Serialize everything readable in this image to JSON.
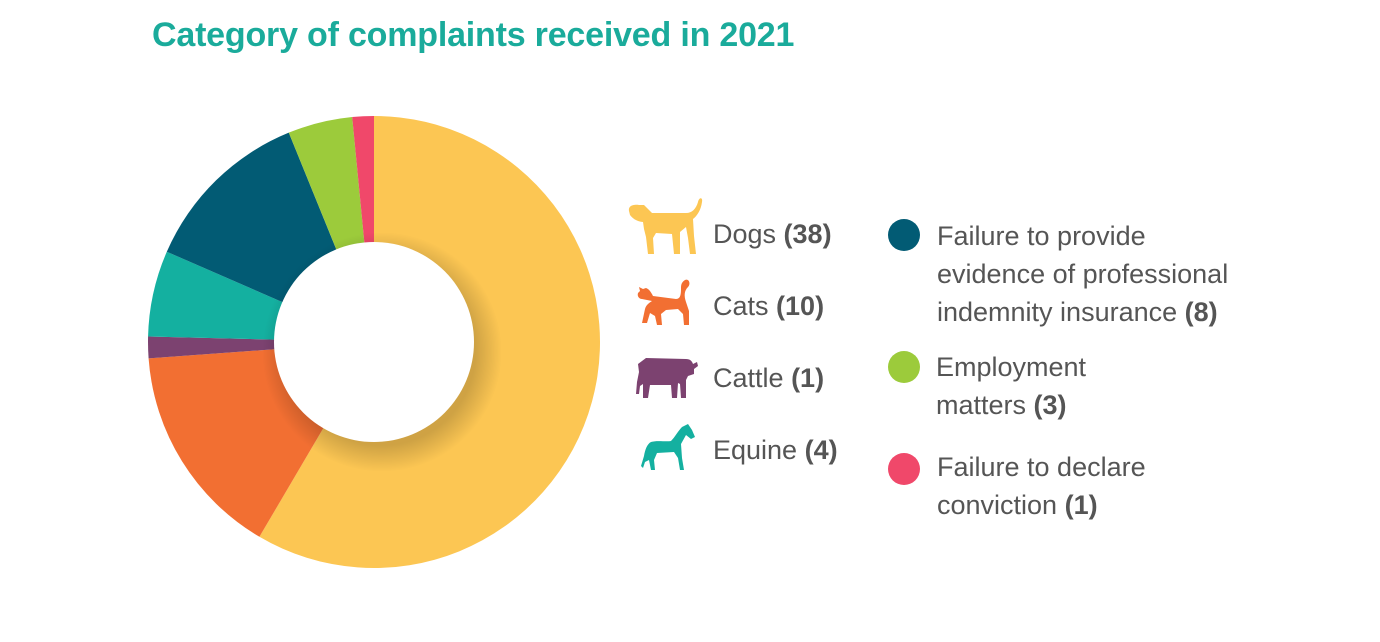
{
  "chart_data": {
    "type": "pie",
    "title": "Category of complaints received in 2021",
    "slices": [
      {
        "label": "Dogs",
        "value": 38,
        "color": "#fcc653",
        "icon": "dog-icon"
      },
      {
        "label": "Cats",
        "value": 10,
        "color": "#f26f32",
        "icon": "cat-icon"
      },
      {
        "label": "Cattle",
        "value": 1,
        "color": "#7c4270",
        "icon": "cow-icon"
      },
      {
        "label": "Equine",
        "value": 4,
        "color": "#14b0a0",
        "icon": "horse-icon"
      },
      {
        "label": "Failure to provide evidence of professional indemnity insurance",
        "value": 8,
        "color": "#025b74"
      },
      {
        "label": "Employment matters",
        "value": 3,
        "color": "#9ccb3b"
      },
      {
        "label": "Failure to declare conviction",
        "value": 1,
        "color": "#f0486a"
      }
    ],
    "legend_placement": "right"
  },
  "legend": {
    "dogs": {
      "label": "Dogs",
      "count": "(38)"
    },
    "cats": {
      "label": "Cats",
      "count": "(10)"
    },
    "cattle": {
      "label": "Cattle",
      "count": "(1)"
    },
    "equine": {
      "label": "Equine",
      "count": "(4)"
    },
    "insurance": {
      "line1": "Failure to provide",
      "line2": "evidence of professional",
      "line3": "indemnity insurance",
      "count": "(8)"
    },
    "employment": {
      "line1": "Employment",
      "line2": "matters",
      "count": "(3)"
    },
    "conviction": {
      "line1": "Failure to declare",
      "line2": "conviction",
      "count": "(1)"
    }
  }
}
